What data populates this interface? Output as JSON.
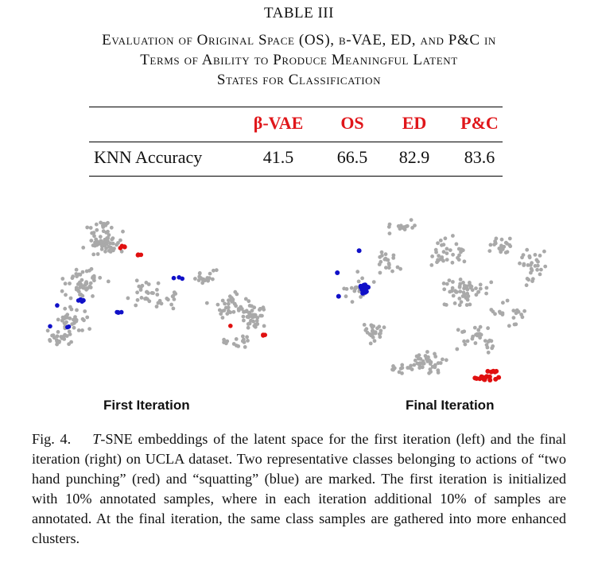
{
  "table": {
    "label": "TABLE III",
    "caption_line1": "Evaluation of Original Space (OS), β-VAE, ED, and P&C in",
    "caption_line2": "Terms of Ability to Produce Meaningful Latent",
    "caption_line3": "States for Classification",
    "headers": [
      "β-VAE",
      "OS",
      "ED",
      "P&C"
    ],
    "row_label": "KNN Accuracy",
    "values": [
      "41.5",
      "66.5",
      "82.9",
      "83.6"
    ],
    "header_color": "#e0161a"
  },
  "figure": {
    "subfig_left_label": "First Iteration",
    "subfig_right_label": "Final Iteration",
    "caption_prefix": "Fig. 4.",
    "caption_italic": "T",
    "caption_text": "-SNE embeddings of the latent space for the first iteration (left) and the final iteration (right) on UCLA dataset. Two representative classes belonging to actions of “two hand punching” (red) and “squatting” (blue) are marked. The first iteration is initialized with 10% annotated samples, where in each iteration additional 10% of samples are annotated. At the final iteration, the same class samples are gathered into more enhanced clusters.",
    "colors": {
      "other": "#a9a9a9",
      "two_hand_punching": "#e01010",
      "squatting": "#1010c8"
    }
  }
}
